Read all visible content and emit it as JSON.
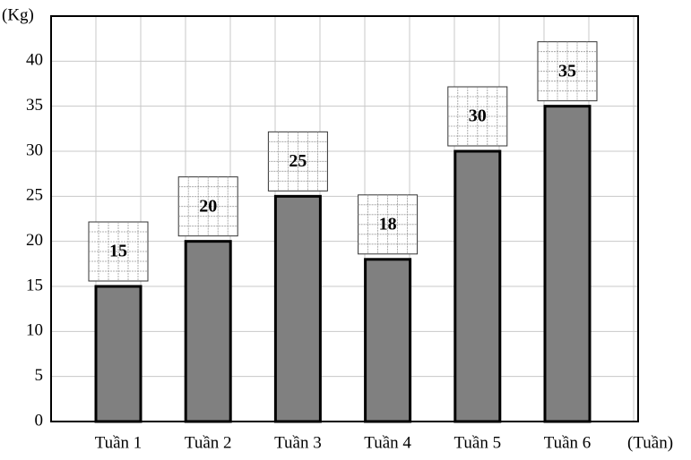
{
  "chart_data": {
    "type": "bar",
    "y_axis_label": "(Kg)",
    "x_axis_label": "(Tuần)",
    "categories": [
      "Tuần 1",
      "Tuần 2",
      "Tuần 3",
      "Tuần 4",
      "Tuần 5",
      "Tuần 6"
    ],
    "values": [
      15,
      20,
      25,
      18,
      30,
      35
    ],
    "color": "#808080",
    "ylim": [
      0,
      45
    ],
    "yticks": [
      0,
      5,
      10,
      15,
      20,
      25,
      30,
      35,
      40
    ],
    "grid": true
  }
}
